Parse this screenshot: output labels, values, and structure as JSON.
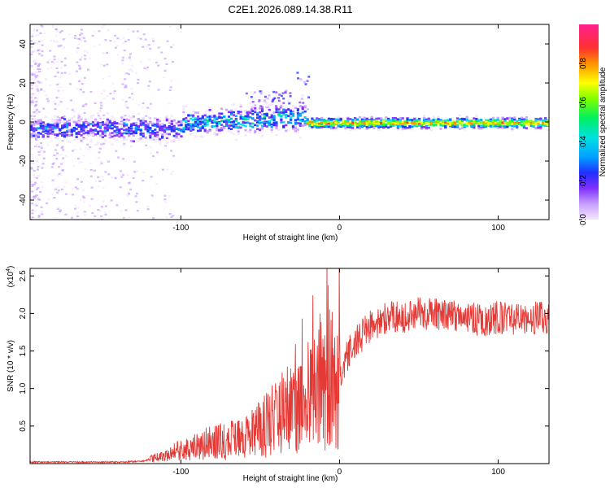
{
  "chart_data": [
    {
      "type": "heatmap",
      "title": "C2E1.2026.089.14.38.R11",
      "xlabel": "Height of straight line (km)",
      "ylabel": "Frequency (Hz)",
      "xlim": [
        -195,
        132
      ],
      "ylim": [
        -50,
        50
      ],
      "xticks": [
        "-100",
        "0",
        "100"
      ],
      "yticks": [
        "40",
        "20",
        "0",
        "-20",
        "-40"
      ],
      "colorbar": {
        "label": "Normalized spectral amplitude",
        "range": [
          0,
          1
        ],
        "ticks": [
          "0.0",
          "0.2",
          "0.4",
          "0.6",
          "0.8"
        ],
        "colormap": [
          "#f5e6ff",
          "#c8a0ff",
          "#8030ff",
          "#2030ff",
          "#00a0ff",
          "#00e0e0",
          "#00f060",
          "#80ff00",
          "#ffff00",
          "#ff9000",
          "#ff3030",
          "#ff2090"
        ]
      },
      "ridge": {
        "description": "Narrow band near 0 Hz; noisy and drifting upward for heights below -20 km, coherent and strong above -20 km",
        "segments": [
          {
            "x_from": -195,
            "x_to": -100,
            "center_hz": -3,
            "width_hz": 12,
            "amplitude": 0.35
          },
          {
            "x_from": -100,
            "x_to": -22,
            "center_hz": 0,
            "width_hz": 14,
            "amplitude": 0.45
          },
          {
            "x_from": -22,
            "x_to": 132,
            "center_hz": 0,
            "width_hz": 6,
            "amplitude": 0.85
          }
        ]
      }
    },
    {
      "type": "line",
      "xlabel": "Height of straight line (km)",
      "ylabel": "SNR (10 * v/v)",
      "ylabel_scale": "(x10",
      "ylabel_scale_exp": "4",
      "ylabel_scale_close": ")",
      "xlim": [
        -195,
        132
      ],
      "ylim": [
        0,
        2.6
      ],
      "xticks": [
        "-100",
        "0",
        "100"
      ],
      "yticks": [
        "0.5",
        "1.0",
        "1.5",
        "2.0",
        "2.5"
      ],
      "series_color": "#e53935",
      "series": [
        {
          "name": "SNR",
          "x": [
            -195,
            -180,
            -160,
            -140,
            -125,
            -110,
            -100,
            -90,
            -80,
            -70,
            -60,
            -50,
            -40,
            -30,
            -25,
            -20,
            -15,
            -10,
            -5,
            0,
            5,
            10,
            20,
            30,
            40,
            50,
            60,
            70,
            80,
            90,
            100,
            110,
            120,
            132
          ],
          "y": [
            0.02,
            0.02,
            0.02,
            0.02,
            0.03,
            0.1,
            0.2,
            0.25,
            0.3,
            0.3,
            0.35,
            0.45,
            0.6,
            0.75,
            0.8,
            0.9,
            1.0,
            1.05,
            1.1,
            1.2,
            1.45,
            1.6,
            1.85,
            1.95,
            1.95,
            2.0,
            2.0,
            1.95,
            1.95,
            1.9,
            1.95,
            1.9,
            1.95,
            1.95
          ]
        }
      ]
    }
  ]
}
